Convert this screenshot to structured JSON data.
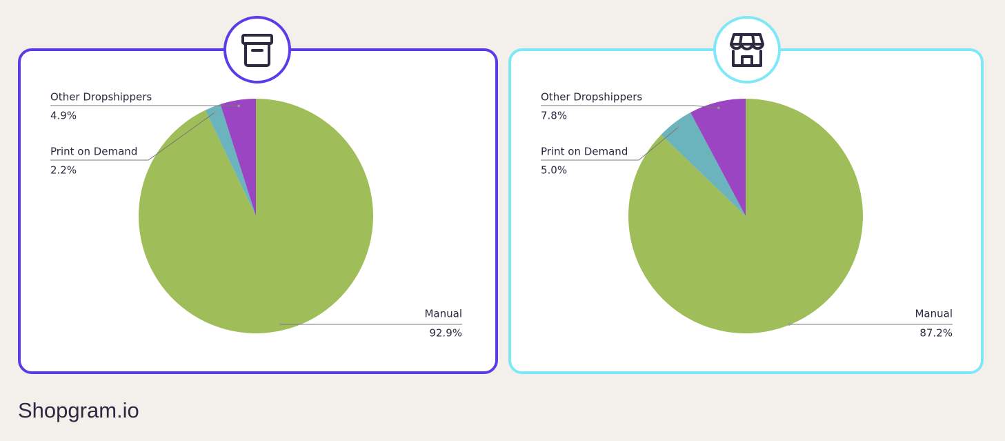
{
  "chart_data": [
    {
      "type": "pie",
      "categories": [
        "Manual",
        "Print on Demand",
        "Other Dropshippers"
      ],
      "values": [
        92.9,
        2.2,
        4.9
      ],
      "value_labels": [
        "92.9%",
        "2.2%",
        "4.9%"
      ],
      "colors": [
        "#9fbd58",
        "#6bb4be",
        "#9b45c2"
      ]
    },
    {
      "type": "pie",
      "categories": [
        "Manual",
        "Print on Demand",
        "Other Dropshippers"
      ],
      "values": [
        87.2,
        5.0,
        7.8
      ],
      "value_labels": [
        "87.2%",
        "5.0%",
        "7.8%"
      ],
      "colors": [
        "#9fbd58",
        "#6bb4be",
        "#9b45c2"
      ]
    }
  ],
  "brand": "Shopgram.io"
}
